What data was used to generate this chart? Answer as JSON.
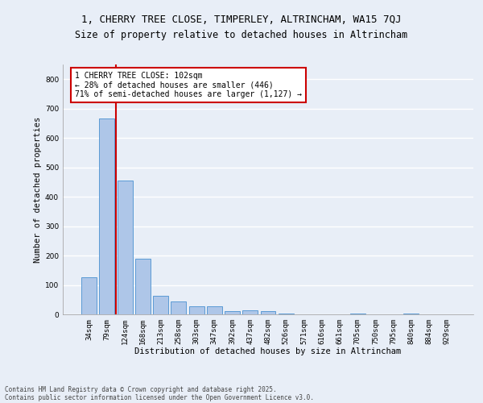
{
  "title_line1": "1, CHERRY TREE CLOSE, TIMPERLEY, ALTRINCHAM, WA15 7QJ",
  "title_line2": "Size of property relative to detached houses in Altrincham",
  "xlabel": "Distribution of detached houses by size in Altrincham",
  "ylabel": "Number of detached properties",
  "categories": [
    "34sqm",
    "79sqm",
    "124sqm",
    "168sqm",
    "213sqm",
    "258sqm",
    "303sqm",
    "347sqm",
    "392sqm",
    "437sqm",
    "482sqm",
    "526sqm",
    "571sqm",
    "616sqm",
    "661sqm",
    "705sqm",
    "750sqm",
    "795sqm",
    "840sqm",
    "884sqm",
    "929sqm"
  ],
  "values": [
    125,
    665,
    455,
    188,
    62,
    45,
    27,
    27,
    11,
    13,
    11,
    3,
    0,
    0,
    0,
    4,
    0,
    0,
    4,
    0,
    0
  ],
  "bar_color": "#aec6e8",
  "bar_edge_color": "#5b9bd5",
  "vline_x": 1.5,
  "vline_color": "#cc0000",
  "annotation_text": "1 CHERRY TREE CLOSE: 102sqm\n← 28% of detached houses are smaller (446)\n71% of semi-detached houses are larger (1,127) →",
  "annotation_box_color": "#cc0000",
  "annotation_bg": "#ffffff",
  "ylim": [
    0,
    850
  ],
  "yticks": [
    0,
    100,
    200,
    300,
    400,
    500,
    600,
    700,
    800
  ],
  "footer_line1": "Contains HM Land Registry data © Crown copyright and database right 2025.",
  "footer_line2": "Contains public sector information licensed under the Open Government Licence v3.0.",
  "bg_color": "#e8eef7",
  "grid_color": "#ffffff",
  "title_fontsize": 9,
  "subtitle_fontsize": 8.5,
  "axis_label_fontsize": 7.5,
  "tick_fontsize": 6.5,
  "annotation_fontsize": 7,
  "footer_fontsize": 5.5
}
